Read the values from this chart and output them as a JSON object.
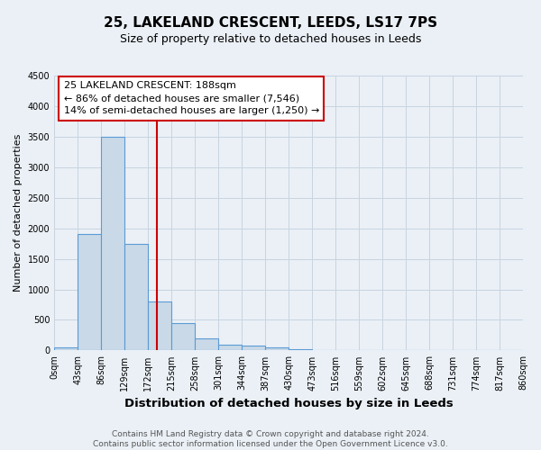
{
  "title_line1": "25, LAKELAND CRESCENT, LEEDS, LS17 7PS",
  "title_line2": "Size of property relative to detached houses in Leeds",
  "xlabel": "Distribution of detached houses by size in Leeds",
  "ylabel": "Number of detached properties",
  "bin_labels": [
    "0sqm",
    "43sqm",
    "86sqm",
    "129sqm",
    "172sqm",
    "215sqm",
    "258sqm",
    "301sqm",
    "344sqm",
    "387sqm",
    "430sqm",
    "473sqm",
    "516sqm",
    "559sqm",
    "602sqm",
    "645sqm",
    "688sqm",
    "731sqm",
    "774sqm",
    "817sqm",
    "860sqm"
  ],
  "bar_heights": [
    50,
    1900,
    3500,
    1750,
    800,
    450,
    200,
    100,
    75,
    50,
    25,
    0,
    0,
    0,
    0,
    0,
    0,
    0,
    0,
    0
  ],
  "bar_color": "#c9d9e8",
  "bar_edge_color": "#5b9bd5",
  "bar_edge_width": 0.8,
  "annotation_text": "25 LAKELAND CRESCENT: 188sqm\n← 86% of detached houses are smaller (7,546)\n14% of semi-detached houses are larger (1,250) →",
  "annotation_box_color": "#ffffff",
  "annotation_box_edge_color": "#cc0000",
  "ylim": [
    0,
    4500
  ],
  "yticks": [
    0,
    500,
    1000,
    1500,
    2000,
    2500,
    3000,
    3500,
    4000,
    4500
  ],
  "grid_color": "#c8d4e0",
  "background_color": "#eaf0f6",
  "footer_text": "Contains HM Land Registry data © Crown copyright and database right 2024.\nContains public sector information licensed under the Open Government Licence v3.0.",
  "title_fontsize": 11,
  "subtitle_fontsize": 9,
  "xlabel_fontsize": 9.5,
  "ylabel_fontsize": 8,
  "tick_fontsize": 7,
  "annotation_fontsize": 8,
  "footer_fontsize": 6.5
}
